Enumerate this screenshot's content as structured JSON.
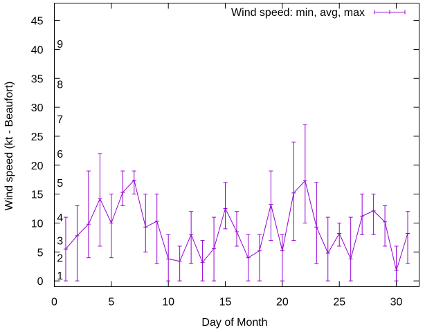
{
  "chart_data": {
    "type": "line",
    "title": "",
    "xlabel": "Day of Month",
    "ylabel": "Wind speed (kt - Beaufort)",
    "xlim": [
      0,
      32
    ],
    "ylim": [
      -1,
      48
    ],
    "x_ticks": [
      0,
      5,
      10,
      15,
      20,
      25,
      30
    ],
    "y_ticks": [
      0,
      5,
      10,
      15,
      20,
      25,
      30,
      35,
      40,
      45
    ],
    "beaufort_labels": [
      {
        "label": "1",
        "y": 1
      },
      {
        "label": "2",
        "y": 4
      },
      {
        "label": "3",
        "y": 7
      },
      {
        "label": "4",
        "y": 11
      },
      {
        "label": "5",
        "y": 17
      },
      {
        "label": "6",
        "y": 22
      },
      {
        "label": "7",
        "y": 28
      },
      {
        "label": "8",
        "y": 34
      },
      {
        "label": "9",
        "y": 41
      }
    ],
    "legend_position": "top-right",
    "grid": false,
    "series": [
      {
        "name": "Wind speed: min, avg, max",
        "color": "#9400d3",
        "x": [
          1,
          2,
          3,
          4,
          5,
          6,
          7,
          8,
          9,
          10,
          11,
          12,
          13,
          14,
          15,
          16,
          17,
          18,
          19,
          20,
          21,
          22,
          23,
          24,
          25,
          26,
          27,
          28,
          29,
          30,
          31
        ],
        "avg": [
          5.5,
          7.8,
          9.8,
          14.2,
          10.0,
          15.3,
          17.4,
          9.3,
          10.3,
          3.8,
          3.4,
          8.0,
          3.2,
          5.6,
          12.5,
          8.5,
          4.0,
          5.2,
          13.2,
          5.2,
          15.2,
          17.3,
          9.3,
          4.8,
          8.2,
          3.8,
          11.2,
          12.1,
          10.2,
          1.8,
          8.2
        ],
        "min": [
          0,
          0,
          4,
          6,
          4,
          13,
          15,
          5,
          3,
          0,
          0,
          3,
          0,
          0,
          9,
          6,
          0,
          0,
          7,
          0,
          7,
          10,
          3,
          0,
          6,
          0,
          8,
          8,
          6,
          0,
          3
        ],
        "max": [
          11,
          13,
          19,
          22,
          15,
          19,
          19,
          15,
          15,
          8,
          6,
          12,
          7,
          11,
          17,
          12,
          8,
          8,
          19,
          8,
          24,
          27,
          17,
          11,
          10,
          11,
          15,
          15,
          13,
          6,
          12
        ]
      }
    ]
  }
}
